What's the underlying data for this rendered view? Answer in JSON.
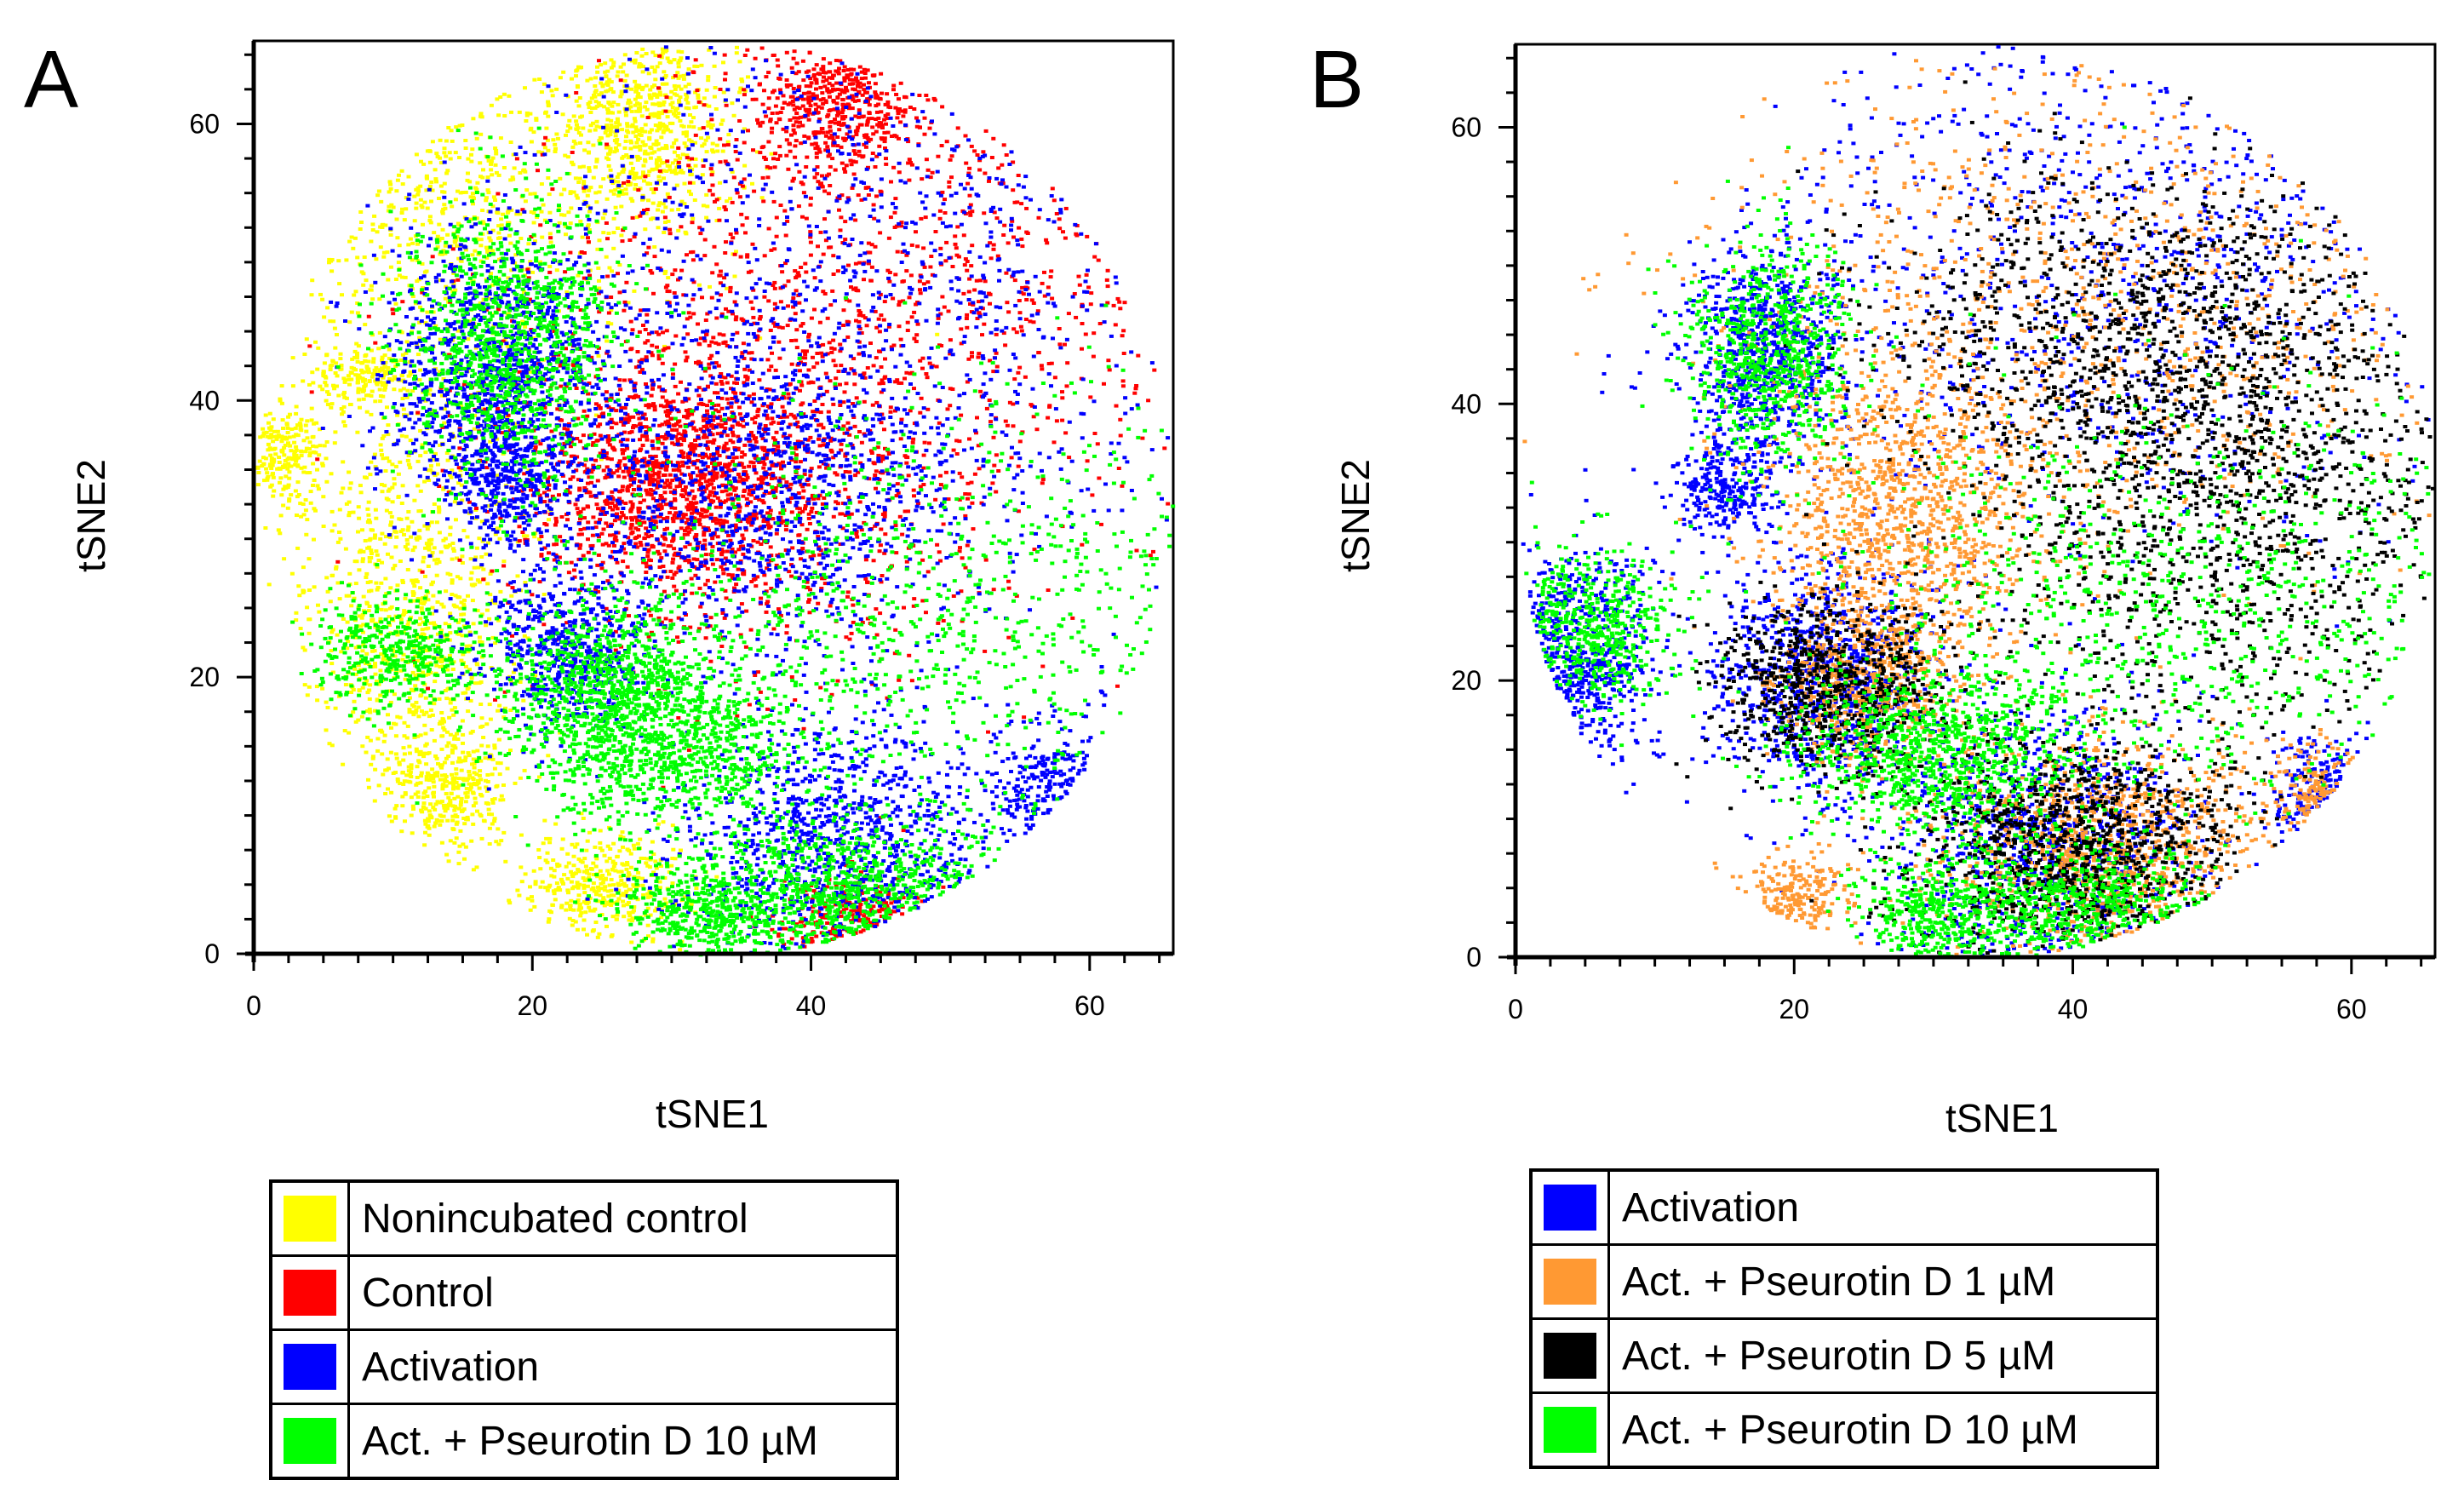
{
  "panels": [
    {
      "letter": "A",
      "xlabel": "tSNE1",
      "ylabel": "tSNE2",
      "legend": [
        {
          "label": "Nonincubated  control",
          "color": "#ffff00"
        },
        {
          "label": "Control",
          "color": "#ff0000"
        },
        {
          "label": "Activation",
          "color": "#0000ff"
        },
        {
          "label": "Act. + Pseurotin D 10 µM",
          "color": "#00ff00"
        }
      ]
    },
    {
      "letter": "B",
      "xlabel": "tSNE1",
      "ylabel": "tSNE2",
      "legend": [
        {
          "label": "Activation",
          "color": "#0000ff"
        },
        {
          "label": "Act. + Pseurotin D 1 µM",
          "color": "#ff9933"
        },
        {
          "label": "Act. + Pseurotin D 5 µM",
          "color": "#000000"
        },
        {
          "label": "Act. + Pseurotin D 10 µM",
          "color": "#00ff00"
        }
      ]
    }
  ],
  "chart_data": [
    {
      "type": "scatter",
      "panel": "A",
      "xlabel": "tSNE1",
      "ylabel": "tSNE2",
      "xlim": [
        0,
        66
      ],
      "ylim": [
        0,
        66
      ],
      "xticks": [
        0,
        20,
        40,
        60
      ],
      "yticks": [
        0,
        20,
        40,
        60
      ],
      "series": [
        {
          "name": "Nonincubated  control",
          "color": "#ffff00",
          "clusters": [
            [
              12,
              56,
              8,
              7
            ],
            [
              28,
              60,
              3,
              4
            ],
            [
              8,
              42,
              2,
              1
            ],
            [
              2,
              36,
              1.5,
              2
            ],
            [
              11,
              24,
              4,
              9
            ],
            [
              14,
              12,
              2,
              2
            ],
            [
              25,
              5,
              3,
              2
            ]
          ]
        },
        {
          "name": "Control",
          "color": "#ff0000",
          "clusters": [
            [
              46,
              52,
              14,
              10
            ],
            [
              36,
              36,
              10,
              8
            ],
            [
              42,
              62,
              3,
              3
            ],
            [
              30,
              34,
              5,
              4
            ],
            [
              43,
              2,
              3,
              2
            ]
          ]
        },
        {
          "name": "Activation",
          "color": "#0000ff",
          "clusters": [
            [
              45,
              50,
              14,
              12
            ],
            [
              17,
              42,
              4,
              5
            ],
            [
              42,
              8,
              6,
              5
            ],
            [
              58,
              11,
              2.5,
              3
            ],
            [
              36,
              34,
              8,
              6
            ],
            [
              22,
              22,
              3,
              3
            ],
            [
              18,
              34,
              2,
              2
            ]
          ]
        },
        {
          "name": "Act. + Pseurotin D 10 µM",
          "color": "#00ff00",
          "clusters": [
            [
              48,
              25,
              14,
              8
            ],
            [
              18,
              44,
              4,
              5
            ],
            [
              30,
              15,
              5,
              3
            ],
            [
              42,
              4,
              6,
              3
            ],
            [
              25,
              20,
              4,
              3
            ],
            [
              10,
              22,
              3,
              2
            ],
            [
              32,
              3,
              3,
              2
            ]
          ]
        }
      ]
    },
    {
      "type": "scatter",
      "panel": "B",
      "xlabel": "tSNE1",
      "ylabel": "tSNE2",
      "xlim": [
        0,
        66
      ],
      "ylim": [
        0,
        66
      ],
      "xticks": [
        0,
        20,
        40,
        60
      ],
      "yticks": [
        0,
        20,
        40,
        60
      ],
      "series": [
        {
          "name": "Activation",
          "color": "#0000ff",
          "clusters": [
            [
              44,
              50,
              14,
              10
            ],
            [
              18,
              44,
              3,
              4
            ],
            [
              38,
              8,
              6,
              5
            ],
            [
              58,
              12,
              2,
              2
            ],
            [
              22,
              20,
              4,
              4
            ],
            [
              15,
              34,
              2,
              2
            ],
            [
              4,
              22,
              3,
              4
            ]
          ]
        },
        {
          "name": "Act. + Pseurotin D 1 µM",
          "color": "#ff9933",
          "clusters": [
            [
              42,
              48,
              14,
              10
            ],
            [
              28,
              32,
              5,
              6
            ],
            [
              42,
              8,
              6,
              4
            ],
            [
              58,
              11,
              2,
              2
            ],
            [
              25,
              20,
              3,
              3
            ],
            [
              20,
              4,
              2,
              2
            ]
          ]
        },
        {
          "name": "Act. + Pseurotin D 5 µM",
          "color": "#000000",
          "clusters": [
            [
              52,
              32,
              10,
              8
            ],
            [
              22,
              20,
              4,
              3
            ],
            [
              40,
              8,
              6,
              4
            ],
            [
              45,
              45,
              10,
              6
            ]
          ]
        },
        {
          "name": "Act. + Pseurotin D 10 µM",
          "color": "#00ff00",
          "clusters": [
            [
              48,
              25,
              14,
              8
            ],
            [
              18,
              44,
              3,
              4
            ],
            [
              30,
              15,
              5,
              3
            ],
            [
              40,
              4,
              5,
              2
            ],
            [
              30,
              3,
              3,
              2
            ],
            [
              5,
              24,
              3,
              3
            ]
          ]
        }
      ]
    }
  ]
}
